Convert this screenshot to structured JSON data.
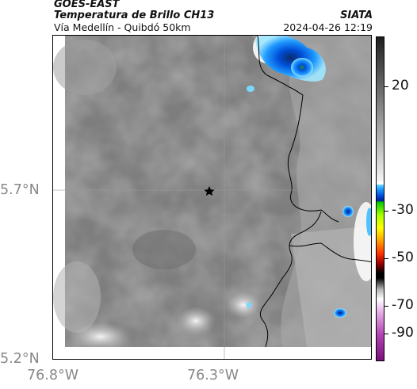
{
  "header": {
    "satellite": "GOES-EAST",
    "product": "Temperatura de Brillo CH13",
    "location": "Vía Medellín - Quibdó 50km",
    "organization": "SIATA",
    "timestamp": "2024-04-26 12:19"
  },
  "axes": {
    "latitude_labels": [
      "5.7°N",
      "5.2°N"
    ],
    "longitude_labels": [
      "76.8°W",
      "76.3°W"
    ]
  },
  "colorbar": {
    "labels": [
      "20",
      "-30",
      "-50",
      "-70",
      "-90"
    ]
  },
  "map": {
    "marker_icon": "star-icon",
    "layers": [
      "brightness-temperature-field",
      "administrative-boundaries",
      "graticule"
    ]
  },
  "colors": {
    "frame": "#000000",
    "graticule": "#9a9a9a",
    "boundary": "#000000",
    "cold_cloud": "#0044cc"
  }
}
